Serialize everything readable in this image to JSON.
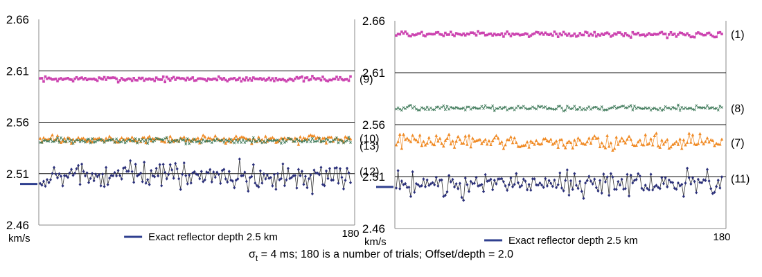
{
  "caption": {
    "sigma": "σ",
    "sub": "t",
    "rest": " = 4 ms;  180 is a number of trials;   Offset/depth = 2.0"
  },
  "chart_data": [
    {
      "type": "scatter",
      "ylim": [
        2.46,
        2.66
      ],
      "yticks": [
        "2.66",
        "2.61",
        "2.56",
        "2.51",
        "2.46"
      ],
      "grid": "horizontal",
      "x_end_label": "180",
      "x_range": [
        1,
        180
      ],
      "unit_label": "km/s",
      "legend_label": "Exact reflector depth 2.5 km",
      "exact_depth_marker": 2.5,
      "series": [
        {
          "label": "(9)",
          "color": "#cc44b0",
          "marker": "square",
          "mean": 2.602,
          "amplitude": 0.0012
        },
        {
          "label": "(10)",
          "color": "#f08a24",
          "marker": "triangle",
          "mean": 2.543,
          "amplitude": 0.0018
        },
        {
          "label": "(13)",
          "color": "#3f7a5a",
          "marker": "x",
          "mean": 2.542,
          "amplitude": 0.0014
        },
        {
          "label": "(12)",
          "color": "#2a2f7a",
          "marker": "diamond",
          "mean": 2.508,
          "amplitude": 0.0065
        }
      ]
    },
    {
      "type": "scatter",
      "ylim": [
        2.46,
        2.66
      ],
      "yticks": [
        "2.66",
        "2.61",
        "2.56",
        "2.51",
        "2.46"
      ],
      "grid": "horizontal",
      "x_end_label": "180",
      "x_range": [
        1,
        180
      ],
      "unit_label": "km/s",
      "legend_label": "Exact reflector depth 2.5 km",
      "exact_depth_marker": 2.5,
      "series": [
        {
          "label": "(1)",
          "color": "#cc44b0",
          "marker": "square",
          "mean": 2.647,
          "amplitude": 0.0012
        },
        {
          "label": "(8)",
          "color": "#3f7a5a",
          "marker": "x",
          "mean": 2.576,
          "amplitude": 0.0012
        },
        {
          "label": "(7)",
          "color": "#f08a24",
          "marker": "triangle",
          "mean": 2.543,
          "amplitude": 0.0035
        },
        {
          "label": "(11)",
          "color": "#2a2f7a",
          "marker": "diamond",
          "mean": 2.503,
          "amplitude": 0.006
        }
      ]
    }
  ]
}
